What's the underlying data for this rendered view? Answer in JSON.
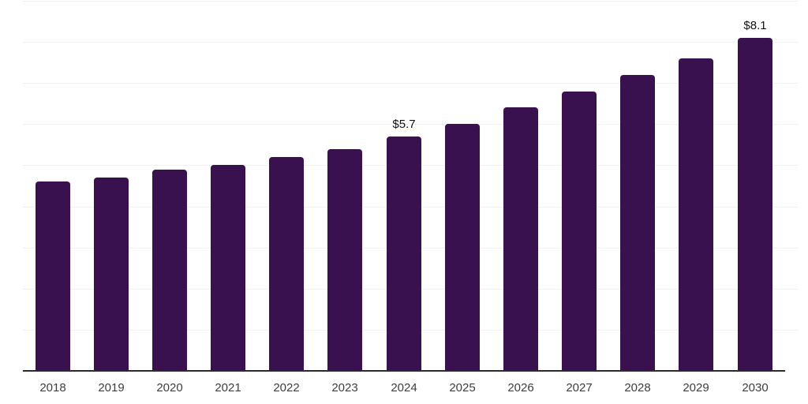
{
  "chart_data": {
    "type": "bar",
    "title": "",
    "categories": [
      "2018",
      "2019",
      "2020",
      "2021",
      "2022",
      "2023",
      "2024",
      "2025",
      "2026",
      "2027",
      "2028",
      "2029",
      "2030"
    ],
    "values": [
      4.6,
      4.7,
      4.9,
      5.0,
      5.2,
      5.4,
      5.7,
      6.0,
      6.4,
      6.8,
      7.2,
      7.6,
      8.1
    ],
    "point_labels": [
      "",
      "",
      "",
      "",
      "",
      "",
      "$5.7",
      "",
      "",
      "",
      "",
      "",
      "$8.1"
    ],
    "xlabel": "",
    "ylabel": "",
    "ylim": [
      0,
      9
    ],
    "grid": true,
    "gridline_values": [
      1,
      2,
      3,
      4,
      5,
      6,
      7,
      8,
      9
    ],
    "legend_position": "none",
    "colors": {
      "bar": "#38114E",
      "grid": "#f2f2f2",
      "axis": "#2b2b2b",
      "x_label_text": "#3d3d3d",
      "point_label_text": "#111111",
      "background": "#ffffff"
    }
  }
}
